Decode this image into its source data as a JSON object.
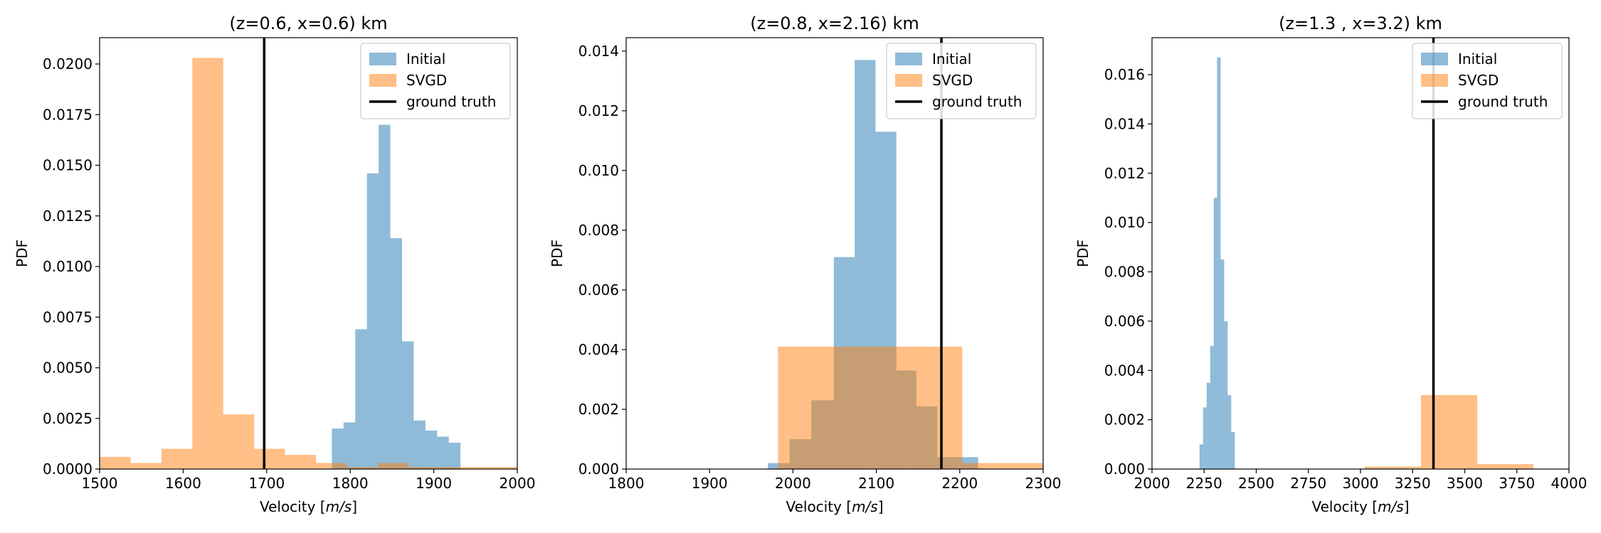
{
  "chart_data": [
    {
      "type": "histogram",
      "title": "(z=0.6, x=0.6) km",
      "xlabel_text": "Velocity [",
      "xlabel_unit": "m/s",
      "xlabel_end": "]",
      "ylabel": "PDF",
      "xlim": [
        1500,
        2000
      ],
      "ylim": [
        0,
        0.0213
      ],
      "xticks": [
        1500,
        1600,
        1700,
        1800,
        1900,
        2000
      ],
      "xtick_labels": [
        "1500",
        "1600",
        "1700",
        "1800",
        "1900",
        "2000"
      ],
      "yticks": [
        0,
        0.0025,
        0.005,
        0.0075,
        0.01,
        0.0125,
        0.015,
        0.0175,
        0.02
      ],
      "ytick_labels": [
        "0.0000",
        "0.0025",
        "0.0050",
        "0.0075",
        "0.0100",
        "0.0125",
        "0.0150",
        "0.0175",
        "0.0200"
      ],
      "ground_truth": 1697,
      "legend_position": "upper right",
      "legend": [
        "Initial",
        "SVGD",
        "ground truth"
      ],
      "series": [
        {
          "name": "Initial",
          "color": "#1f77b4",
          "opacity": 0.5,
          "bins": [
            [
              1778,
              1792,
              0.002
            ],
            [
              1792,
              1806,
              0.0023
            ],
            [
              1806,
              1820,
              0.0069
            ],
            [
              1820,
              1834,
              0.0146
            ],
            [
              1834,
              1848,
              0.017
            ],
            [
              1848,
              1862,
              0.0114
            ],
            [
              1862,
              1876,
              0.0063
            ],
            [
              1876,
              1890,
              0.0024
            ],
            [
              1890,
              1904,
              0.0019
            ],
            [
              1904,
              1918,
              0.0016
            ],
            [
              1918,
              1932,
              0.0013
            ]
          ]
        },
        {
          "name": "SVGD",
          "color": "#ff7f0e",
          "opacity": 0.5,
          "bins": [
            [
              1500,
              1537,
              0.0006
            ],
            [
              1537,
              1574,
              0.0003
            ],
            [
              1574,
              1611,
              0.001
            ],
            [
              1611,
              1648,
              0.0203
            ],
            [
              1648,
              1685,
              0.0027
            ],
            [
              1685,
              1722,
              0.001
            ],
            [
              1722,
              1759,
              0.0007
            ],
            [
              1759,
              1796,
              0.0003
            ],
            [
              1796,
              1833,
              0.0001
            ],
            [
              1833,
              1870,
              0.0003
            ],
            [
              1870,
              1907,
              0.0001
            ],
            [
              1907,
              2000,
              0.0001
            ]
          ]
        }
      ]
    },
    {
      "type": "histogram",
      "title": "(z=0.8, x=2.16) km",
      "xlabel_text": "Velocity [",
      "xlabel_unit": "m/s",
      "xlabel_end": "]",
      "ylabel": "PDF",
      "xlim": [
        1800,
        2300
      ],
      "ylim": [
        0,
        0.01445
      ],
      "xticks": [
        1800,
        1900,
        2000,
        2100,
        2200,
        2300
      ],
      "xtick_labels": [
        "1800",
        "1900",
        "2000",
        "2100",
        "2200",
        "2300"
      ],
      "yticks": [
        0,
        0.002,
        0.004,
        0.006,
        0.008,
        0.01,
        0.012,
        0.014
      ],
      "ytick_labels": [
        "0.000",
        "0.002",
        "0.004",
        "0.006",
        "0.008",
        "0.010",
        "0.012",
        "0.014"
      ],
      "ground_truth": 2178,
      "legend_position": "upper right",
      "legend": [
        "Initial",
        "SVGD",
        "ground truth"
      ],
      "series": [
        {
          "name": "Initial",
          "color": "#1f77b4",
          "opacity": 0.5,
          "bins": [
            [
              1970,
              1983,
              0.0002
            ],
            [
              1983,
              1996,
              0.0002
            ],
            [
              1996,
              2009,
              0.001
            ],
            [
              2009,
              2022,
              0.001
            ],
            [
              2022,
              2036,
              0.0023
            ],
            [
              2036,
              2049,
              0.0023
            ],
            [
              2049,
              2061,
              0.0071
            ],
            [
              2061,
              2074,
              0.0071
            ],
            [
              2074,
              2086,
              0.0137
            ],
            [
              2086,
              2099,
              0.0137
            ],
            [
              2099,
              2111,
              0.0113
            ],
            [
              2111,
              2124,
              0.0113
            ],
            [
              2124,
              2136,
              0.0033
            ],
            [
              2136,
              2148,
              0.0033
            ],
            [
              2148,
              2160,
              0.0021
            ],
            [
              2160,
              2173,
              0.0021
            ],
            [
              2173,
              2185,
              0.0004
            ],
            [
              2185,
              2197,
              0.0004
            ],
            [
              2197,
              2210,
              0.0004
            ],
            [
              2210,
              2222,
              0.0004
            ]
          ]
        },
        {
          "name": "SVGD",
          "color": "#ff7f0e",
          "opacity": 0.5,
          "bins": [
            [
              1800,
              1982,
              0.0
            ],
            [
              1982,
              2203,
              0.0041
            ],
            [
              2203,
              2300,
              0.0002
            ]
          ]
        }
      ]
    },
    {
      "type": "histogram",
      "title": "(z=1.3 , x=3.2) km",
      "xlabel_text": "Velocity [",
      "xlabel_unit": "m/s",
      "xlabel_end": "]",
      "ylabel": "PDF",
      "xlim": [
        2000,
        4000
      ],
      "ylim": [
        0,
        0.0175
      ],
      "xticks": [
        2000,
        2250,
        2500,
        2750,
        3000,
        3250,
        3500,
        3750,
        4000
      ],
      "xtick_labels": [
        "2000",
        "2250",
        "2500",
        "2750",
        "3000",
        "3250",
        "3500",
        "3750",
        "4000"
      ],
      "yticks": [
        0,
        0.002,
        0.004,
        0.006,
        0.008,
        0.01,
        0.012,
        0.014,
        0.016
      ],
      "ytick_labels": [
        "0.000",
        "0.002",
        "0.004",
        "0.006",
        "0.008",
        "0.010",
        "0.012",
        "0.014",
        "0.016"
      ],
      "ground_truth": 3350,
      "legend_position": "upper right",
      "legend": [
        "Initial",
        "SVGD",
        "ground truth"
      ],
      "series": [
        {
          "name": "Initial",
          "color": "#1f77b4",
          "opacity": 0.5,
          "bins": [
            [
              2228,
              2245,
              0.001
            ],
            [
              2245,
              2262,
              0.0025
            ],
            [
              2262,
              2279,
              0.0035
            ],
            [
              2279,
              2296,
              0.005
            ],
            [
              2296,
              2312,
              0.011
            ],
            [
              2312,
              2329,
              0.0167
            ],
            [
              2329,
              2346,
              0.0085
            ],
            [
              2346,
              2363,
              0.006
            ],
            [
              2363,
              2380,
              0.003
            ],
            [
              2380,
              2397,
              0.0015
            ]
          ]
        },
        {
          "name": "SVGD",
          "color": "#ff7f0e",
          "opacity": 0.5,
          "bins": [
            [
              2000,
              3020,
              0.0
            ],
            [
              3020,
              3290,
              0.0001
            ],
            [
              3290,
              3560,
              0.003
            ],
            [
              3560,
              3830,
              0.0002
            ],
            [
              3830,
              4000,
              0.0
            ]
          ]
        }
      ]
    }
  ]
}
